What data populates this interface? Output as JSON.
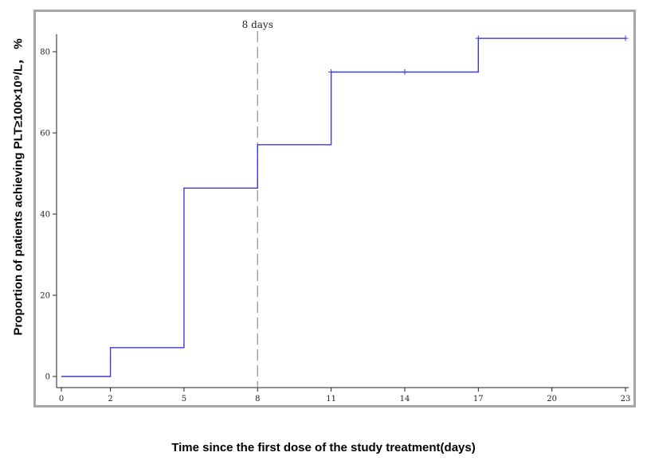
{
  "chart_data": {
    "type": "line",
    "step": true,
    "xlabel": "Time since the first dose of the study treatment(days)",
    "ylabel": "Proportion of patients achieving PLT≥100×10⁹/L， %",
    "xticks": [
      0,
      2,
      5,
      8,
      11,
      14,
      17,
      20,
      23
    ],
    "yticks": [
      0,
      20,
      40,
      60,
      80
    ],
    "xlim": [
      0,
      23
    ],
    "ylim": [
      0,
      85
    ],
    "series": [
      {
        "color": "#3a3ad6",
        "points": [
          {
            "x": 0,
            "y": 0
          },
          {
            "x": 2,
            "y": 7.1
          },
          {
            "x": 5,
            "y": 46.4
          },
          {
            "x": 8,
            "y": 57.1
          },
          {
            "x": 11,
            "y": 75.0
          },
          {
            "x": 17,
            "y": 83.3
          },
          {
            "x": 23,
            "y": 83.3
          }
        ],
        "censor_marks": [
          {
            "x": 11,
            "y": 75.0
          },
          {
            "x": 14,
            "y": 75.0
          },
          {
            "x": 17,
            "y": 83.3
          },
          {
            "x": 23,
            "y": 83.3
          }
        ]
      }
    ],
    "annotations": [
      {
        "type": "vline",
        "x": 8,
        "style": "dashed",
        "color": "#9a9a9a",
        "label": "8 days"
      }
    ],
    "grid": false,
    "legend": "none"
  }
}
